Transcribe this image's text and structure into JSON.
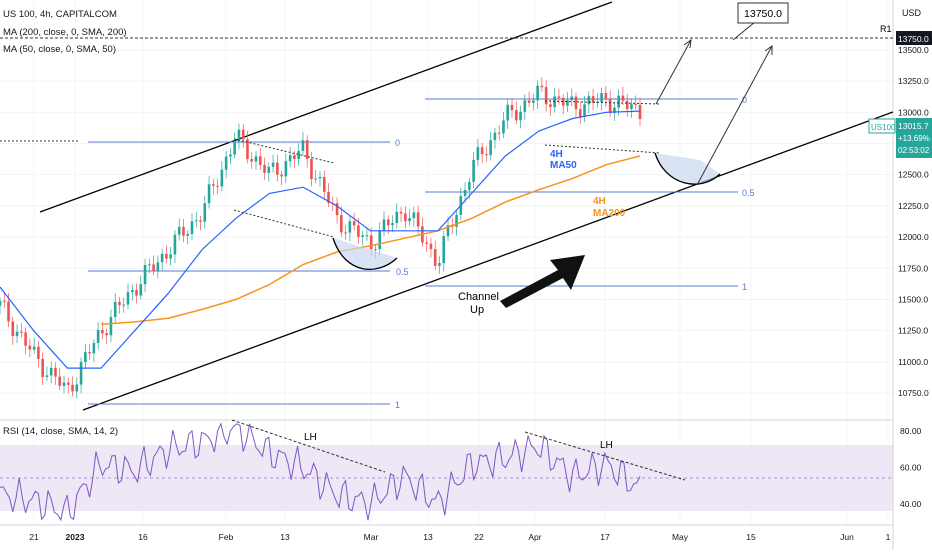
{
  "header": {
    "symbol_line": "US 100, 4h, CAPITALCOM",
    "ma200_line": "MA (200, close, 0, SMA, 200)",
    "ma50_line": "MA (50, close, 0, SMA, 50)",
    "rsi_line": "RSI (14, close, SMA, 14, 2)"
  },
  "price_axis": {
    "currency": "USD",
    "ticks": [
      "13500.0",
      "13250.0",
      "13000.0",
      "12750.0",
      "12500.0",
      "12250.0",
      "12000.0",
      "11750.0",
      "11500.0",
      "11250.0",
      "11000.0",
      "10750.0"
    ],
    "badges": {
      "r1_price": "13750.0",
      "symbol": "US100",
      "last_price": "13015.7",
      "change": "+13.69%",
      "countdown": "02:53:02"
    }
  },
  "rsi_axis": {
    "ticks": [
      "80.00",
      "60.00",
      "40.00"
    ]
  },
  "time_axis": {
    "ticks": [
      "21",
      "2023",
      "16",
      "Feb",
      "13",
      "Mar",
      "13",
      "22",
      "Apr",
      "17",
      "May",
      "15",
      "Jun",
      "1"
    ]
  },
  "annotations": {
    "target_box": "13750.0",
    "r1": "R1",
    "ma50_label_1": "4H",
    "ma50_label_2": "MA50",
    "ma200_label_1": "4H",
    "ma200_label_2": "MA200",
    "channel_label_1": "Channel",
    "channel_label_2": "Up",
    "fib_upper_0": "0",
    "fib_upper_05": "0.5",
    "fib_upper_1": "1",
    "fib_lower_0": "0",
    "fib_lower_05": "0.5",
    "fib_lower_1": "1",
    "rsi_lh_1": "LH",
    "rsi_lh_2": "LH"
  },
  "colors": {
    "ma50": "#2962ff",
    "ma200": "#f7931a",
    "candle_up": "#26a69a",
    "candle_down": "#ef5350",
    "fib_line": "#5b7bd5",
    "rsi_line": "#7e57c2",
    "rsi_band": "#ede7f6",
    "badge_green": "#26a69a"
  },
  "chart_data": {
    "type": "line",
    "symbol": "US 100",
    "timeframe": "4h",
    "x": [
      "2022-12-19",
      "2022-12-27",
      "2023-01-03",
      "2023-01-10",
      "2023-01-17",
      "2023-01-24",
      "2023-01-31",
      "2023-02-02",
      "2023-02-07",
      "2023-02-14",
      "2023-02-21",
      "2023-02-28",
      "2023-03-07",
      "2023-03-13",
      "2023-03-20",
      "2023-03-27",
      "2023-04-03",
      "2023-04-10",
      "2023-04-17",
      "2023-04-21"
    ],
    "series": [
      {
        "name": "US100",
        "values": [
          11450,
          11050,
          10760,
          11250,
          11600,
          11900,
          12200,
          12800,
          12500,
          12700,
          12150,
          11950,
          12230,
          11800,
          12550,
          12950,
          13150,
          13050,
          13100,
          13015.7
        ]
      },
      {
        "name": "MA (50, close, 0, SMA, 50)",
        "values": [
          11600,
          11250,
          10950,
          10950,
          11250,
          11550,
          11900,
          12150,
          12350,
          12400,
          12250,
          12050,
          12050,
          12050,
          12350,
          12650,
          12850,
          12950,
          13000,
          13010
        ]
      },
      {
        "name": "MA (200, close, 0, SMA, 200)",
        "values": [
          null,
          null,
          null,
          11300,
          11320,
          11350,
          11420,
          11500,
          11620,
          11780,
          11880,
          11930,
          11990,
          12050,
          12150,
          12280,
          12380,
          12470,
          12580,
          12650
        ]
      }
    ],
    "rsi": {
      "name": "RSI (14, close, SMA, 14, 2)",
      "values": [
        45,
        42,
        35,
        62,
        58,
        70,
        74,
        82,
        68,
        60,
        45,
        40,
        55,
        40,
        62,
        65,
        72,
        55,
        62,
        48
      ]
    },
    "ylim": [
      10550,
      13900
    ],
    "rsi_ylim": [
      30,
      85
    ],
    "levels": {
      "R1": 13750.0,
      "last": 13015.7
    }
  }
}
